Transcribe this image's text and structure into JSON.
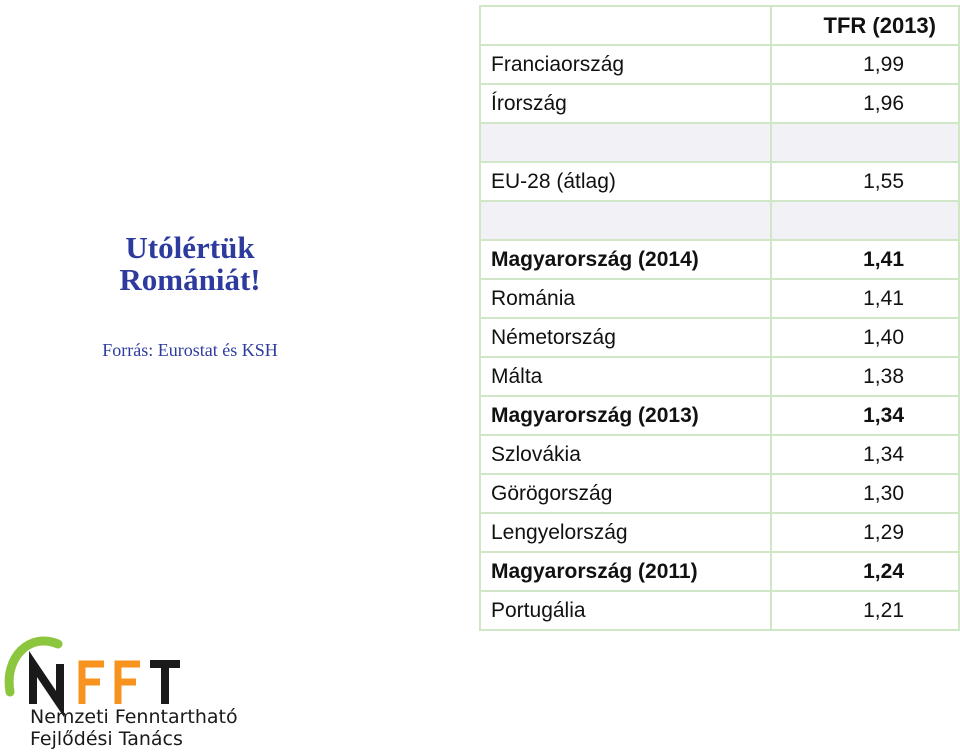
{
  "headline": "Utólértük Romániát!",
  "source": "Forrás: Eurostat és KSH",
  "table": {
    "header": "TFR (2013)",
    "rows": [
      {
        "name": "Franciaország",
        "value": "1,99",
        "bold": false,
        "blank": false
      },
      {
        "name": "Írország",
        "value": "1,96",
        "bold": false,
        "blank": false
      },
      {
        "name": "",
        "value": "",
        "bold": false,
        "blank": true
      },
      {
        "name": "EU-28 (átlag)",
        "value": "1,55",
        "bold": false,
        "blank": false
      },
      {
        "name": "",
        "value": "",
        "bold": false,
        "blank": true
      },
      {
        "name": "Magyarország (2014)",
        "value": "1,41",
        "bold": true,
        "blank": false
      },
      {
        "name": "Románia",
        "value": "1,41",
        "bold": false,
        "blank": false
      },
      {
        "name": "Németország",
        "value": "1,40",
        "bold": false,
        "blank": false
      },
      {
        "name": "Málta",
        "value": "1,38",
        "bold": false,
        "blank": false
      },
      {
        "name": "Magyarország (2013)",
        "value": "1,34",
        "bold": true,
        "blank": false
      },
      {
        "name": "Szlovákia",
        "value": "1,34",
        "bold": false,
        "blank": false
      },
      {
        "name": "Görögország",
        "value": "1,30",
        "bold": false,
        "blank": false
      },
      {
        "name": "Lengyelország",
        "value": "1,29",
        "bold": false,
        "blank": false
      },
      {
        "name": "Magyarország (2011)",
        "value": "1,24",
        "bold": true,
        "blank": false
      },
      {
        "name": "Portugália",
        "value": "1,21",
        "bold": false,
        "blank": false
      }
    ]
  },
  "logo": {
    "letters": "NFFT",
    "line1": "Nemzeti Fenntartható",
    "line2": "Fejlődési Tanács",
    "colors": {
      "green": "#8cc63f",
      "orange": "#f7931e",
      "dark": "#1a1a1a"
    }
  }
}
